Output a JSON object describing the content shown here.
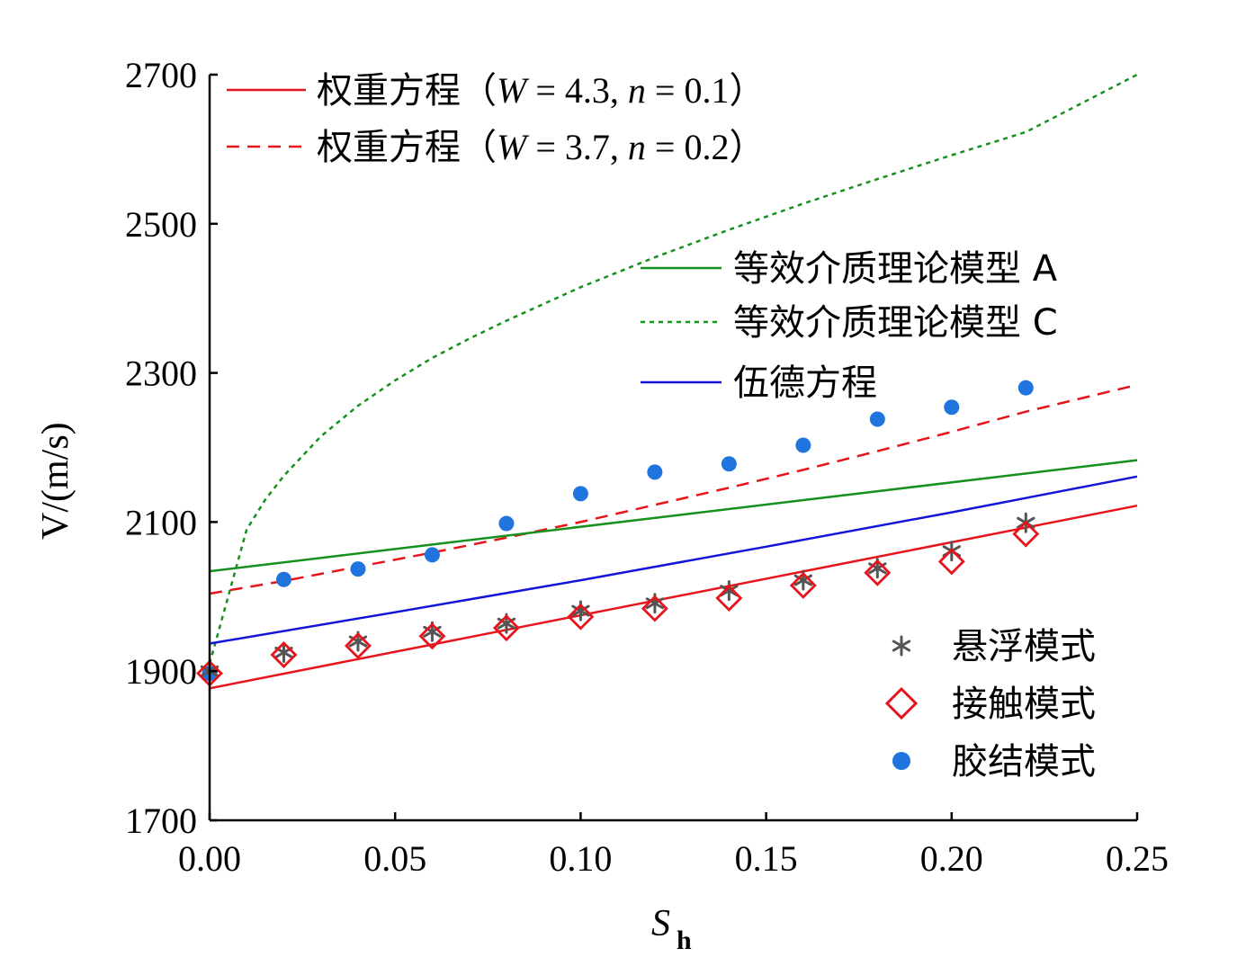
{
  "chart_data": {
    "type": "scatter",
    "xlabel": "S",
    "xlabel_sub": "h",
    "ylabel": "V/(m/s)",
    "xlim": [
      0.0,
      0.25
    ],
    "ylim": [
      1700,
      2700
    ],
    "x_ticks": [
      "0.00",
      "0.05",
      "0.10",
      "0.15",
      "0.20",
      "0.25"
    ],
    "y_ticks": [
      "1700",
      "1900",
      "2100",
      "2300",
      "2500",
      "2700"
    ],
    "grid": false,
    "colors": {
      "red": "#e8141b",
      "green": "#16901e",
      "blue": "#1414d8",
      "gray": "#555555",
      "dot_blue": "#1f74de"
    },
    "line_series": [
      {
        "name": "权重方程（W = 4.3, n = 0.1）",
        "color": "#e8141b",
        "style": "solid",
        "x": [
          0.0,
          0.25
        ],
        "y": [
          1877,
          2122
        ]
      },
      {
        "name": "权重方程（W = 3.7, n = 0.2）",
        "color": "#e8141b",
        "style": "dashed",
        "x": [
          0.0,
          0.02,
          0.04,
          0.06,
          0.08,
          0.1,
          0.12,
          0.14,
          0.16,
          0.18,
          0.2,
          0.22,
          0.25
        ],
        "y": [
          2004,
          2021,
          2040,
          2059,
          2079,
          2100,
          2123,
          2146,
          2170,
          2195,
          2221,
          2248,
          2284
        ]
      },
      {
        "name": "等效介质理论模型 A",
        "color": "#16901e",
        "style": "solid",
        "x": [
          0.0,
          0.25
        ],
        "y": [
          2034,
          2183
        ]
      },
      {
        "name": "等效介质理论模型 C",
        "color": "#16901e",
        "style": "dotted",
        "x": [
          0.0,
          0.005,
          0.01,
          0.015,
          0.02,
          0.03,
          0.04,
          0.05,
          0.06,
          0.07,
          0.08,
          0.1,
          0.12,
          0.14,
          0.16,
          0.18,
          0.2,
          0.22,
          0.25
        ],
        "y": [
          1910,
          2000,
          2090,
          2130,
          2162,
          2215,
          2256,
          2290,
          2320,
          2346,
          2370,
          2415,
          2455,
          2492,
          2527,
          2560,
          2592,
          2623,
          2700
        ]
      },
      {
        "name": "伍德方程",
        "color": "#1414d8",
        "style": "solid",
        "x": [
          0.0,
          0.05,
          0.1,
          0.15,
          0.2,
          0.25
        ],
        "y": [
          1937,
          1979,
          2022,
          2067,
          2113,
          2161
        ]
      }
    ],
    "point_series": [
      {
        "name": "悬浮模式",
        "marker": "asterisk",
        "color": "#555555",
        "x": [
          0.0,
          0.02,
          0.04,
          0.06,
          0.08,
          0.1,
          0.12,
          0.14,
          0.16,
          0.18,
          0.2,
          0.22
        ],
        "y": [
          1900,
          1925,
          1940,
          1953,
          1964,
          1981,
          1991,
          2008,
          2022,
          2038,
          2061,
          2099
        ]
      },
      {
        "name": "接触模式",
        "marker": "diamond",
        "color": "#e8141b",
        "x": [
          0.0,
          0.02,
          0.04,
          0.06,
          0.08,
          0.1,
          0.12,
          0.14,
          0.16,
          0.18,
          0.2,
          0.22
        ],
        "y": [
          1897,
          1922,
          1934,
          1947,
          1958,
          1973,
          1984,
          1998,
          2015,
          2032,
          2047,
          2084
        ]
      },
      {
        "name": "胶结模式",
        "marker": "dot",
        "color": "#1f74de",
        "x": [
          0.0,
          0.02,
          0.04,
          0.06,
          0.08,
          0.1,
          0.12,
          0.14,
          0.16,
          0.18,
          0.2,
          0.22
        ],
        "y": [
          1897,
          2023,
          2037,
          2056,
          2098,
          2138,
          2167,
          2178,
          2203,
          2238,
          2254,
          2280
        ]
      }
    ],
    "legend_top": [
      {
        "prefix": "权重方程（",
        "W": "4.3",
        "n": "0.1",
        "suffix": "）"
      },
      {
        "prefix": "权重方程（",
        "W": "3.7",
        "n": "0.2",
        "suffix": "）"
      }
    ],
    "legend_top_vars": {
      "w": "W",
      "n": "n",
      "eq": " = ",
      "sep": ", "
    },
    "legend_mid": [
      "等效介质理论模型 A",
      "等效介质理论模型 C",
      "伍德方程"
    ],
    "legend_bottom": [
      "悬浮模式",
      "接触模式",
      "胶结模式"
    ],
    "legend_placement": {
      "top_two": "top-left",
      "middle_three": "upper-right",
      "markers": "lower-right"
    }
  }
}
